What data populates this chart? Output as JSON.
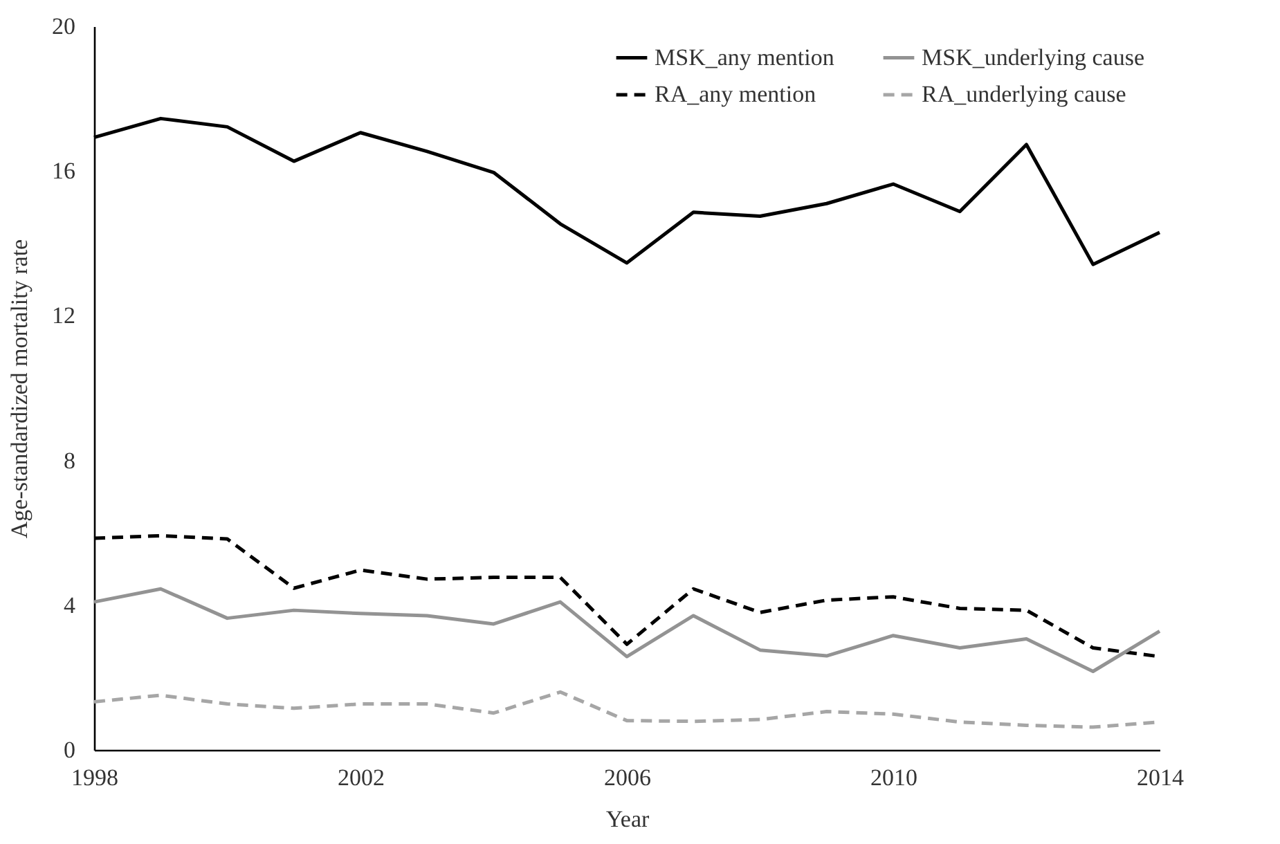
{
  "chart_data": {
    "type": "line",
    "xlabel": "Year",
    "ylabel": "Age-standardized mortality rate",
    "x": [
      1998,
      1999,
      2000,
      2001,
      2002,
      2003,
      2004,
      2005,
      2006,
      2007,
      2008,
      2009,
      2010,
      2011,
      2012,
      2013,
      2014
    ],
    "series": [
      {
        "name": "MSK_any mention",
        "color": "#000000",
        "line_style": "solid",
        "values": [
          16.93,
          17.45,
          17.22,
          16.27,
          17.06,
          16.54,
          15.96,
          14.54,
          13.46,
          14.86,
          14.75,
          15.1,
          15.64,
          14.88,
          16.73,
          13.42,
          14.3
        ]
      },
      {
        "name": "RA_any mention",
        "color": "#000000",
        "line_style": "dashed",
        "values": [
          5.85,
          5.92,
          5.83,
          4.47,
          4.97,
          4.72,
          4.77,
          4.77,
          2.92,
          4.45,
          3.8,
          4.14,
          4.23,
          3.91,
          3.86,
          2.82,
          2.58
        ]
      },
      {
        "name": "MSK_underlying cause",
        "color": "#939393",
        "line_style": "solid",
        "values": [
          4.09,
          4.45,
          3.64,
          3.86,
          3.77,
          3.71,
          3.48,
          4.09,
          2.58,
          3.71,
          2.76,
          2.6,
          3.16,
          2.82,
          3.07,
          2.17,
          3.28
        ]
      },
      {
        "name": "RA_underlying cause",
        "color": "#a6a6a6",
        "line_style": "dashed",
        "values": [
          1.33,
          1.51,
          1.27,
          1.15,
          1.27,
          1.27,
          1.02,
          1.6,
          0.81,
          0.79,
          0.84,
          1.06,
          0.99,
          0.77,
          0.68,
          0.63,
          0.77
        ]
      }
    ],
    "xlim": [
      1998,
      2014
    ],
    "xticks": [
      1998,
      2002,
      2006,
      2010,
      2014
    ],
    "ylim": [
      0,
      20
    ],
    "yticks": [
      0,
      4,
      8,
      12,
      16,
      20
    ],
    "grid": false,
    "legend": "top right",
    "marker": "none"
  }
}
